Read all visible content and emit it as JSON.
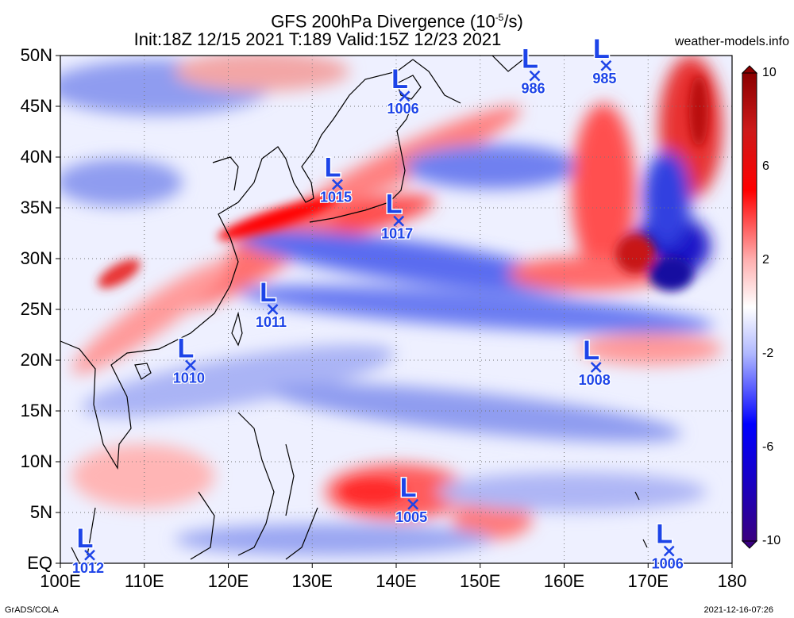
{
  "title": {
    "line1": "GFS 200hPa Divergence (10",
    "line1_sup": "-5",
    "line1_end": "/s)",
    "line2": "Init:18Z 12/15 2021 T:189 Valid:15Z 12/23 2021"
  },
  "credit": "weather-models.info",
  "footer": {
    "left": "GrADS/COLA",
    "right": "2021-12-16-07:26"
  },
  "map": {
    "lon_range": [
      100,
      180
    ],
    "lat_range": [
      0,
      50
    ],
    "lat_ticks": [
      "50N",
      "45N",
      "40N",
      "35N",
      "30N",
      "25N",
      "20N",
      "15N",
      "10N",
      "5N",
      "EQ"
    ],
    "lon_ticks": [
      "100E",
      "110E",
      "120E",
      "130E",
      "140E",
      "150E",
      "160E",
      "170E",
      "180"
    ],
    "grid": true
  },
  "colorbar": {
    "ticks": [
      "10",
      "6",
      "2",
      "-2",
      "-6",
      "-10"
    ],
    "colors": {
      "max": "#8b0000",
      "pos": "#ff0000",
      "neutral": "#ffffff",
      "neg": "#0000ff",
      "min": "#3a0080"
    }
  },
  "lows": [
    {
      "pressure": "1006",
      "lon": 141.0,
      "lat": 46.0
    },
    {
      "pressure": "986",
      "lon": 156.5,
      "lat": 48.0
    },
    {
      "pressure": "985",
      "lon": 165.0,
      "lat": 49.0
    },
    {
      "pressure": "1015",
      "lon": 133.0,
      "lat": 37.3
    },
    {
      "pressure": "1017",
      "lon": 140.3,
      "lat": 33.7
    },
    {
      "pressure": "1011",
      "lon": 125.3,
      "lat": 25.0
    },
    {
      "pressure": "1010",
      "lon": 115.5,
      "lat": 19.5
    },
    {
      "pressure": "1008",
      "lon": 163.8,
      "lat": 19.3
    },
    {
      "pressure": "1005",
      "lon": 142.0,
      "lat": 5.8
    },
    {
      "pressure": "1012",
      "lon": 103.5,
      "lat": 0.8
    },
    {
      "pressure": "1006",
      "lon": 172.5,
      "lat": 1.2
    }
  ]
}
